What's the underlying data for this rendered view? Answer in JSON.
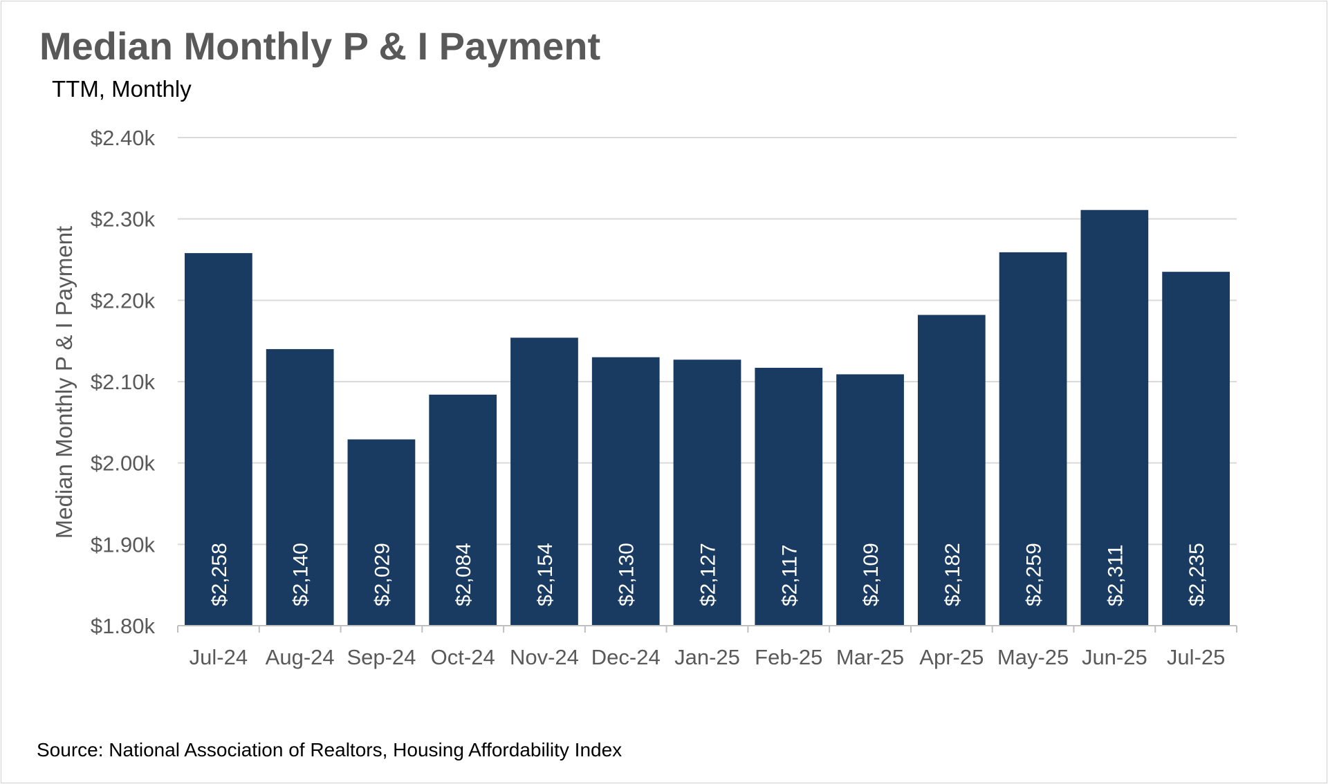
{
  "chart_data": {
    "type": "bar",
    "title": "Median Monthly P & I Payment",
    "subtitle": "TTM, Monthly",
    "source": "Source: National Association of Realtors, Housing Affordability Index",
    "ylabel": "Median Monthly P & I Payment",
    "xlabel": "",
    "categories": [
      "Jul-24",
      "Aug-24",
      "Sep-24",
      "Oct-24",
      "Nov-24",
      "Dec-24",
      "Jan-25",
      "Feb-25",
      "Mar-25",
      "Apr-25",
      "May-25",
      "Jun-25",
      "Jul-25"
    ],
    "values": [
      2258,
      2140,
      2029,
      2084,
      2154,
      2130,
      2127,
      2117,
      2109,
      2182,
      2259,
      2311,
      2235
    ],
    "data_labels": [
      "$2,258",
      "$2,140",
      "$2,029",
      "$2,084",
      "$2,154",
      "$2,130",
      "$2,127",
      "$2,117",
      "$2,109",
      "$2,182",
      "$2,259",
      "$2,311",
      "$2,235"
    ],
    "ylim": [
      1800,
      2400
    ],
    "yticks": [
      1800,
      1900,
      2000,
      2100,
      2200,
      2300,
      2400
    ],
    "ytick_labels": [
      "$1.80k",
      "$1.90k",
      "$2.00k",
      "$2.10k",
      "$2.20k",
      "$2.30k",
      "$2.40k"
    ],
    "grid": true,
    "legend": "none",
    "colors": {
      "bar": "#1a3b61",
      "grid": "#d9d9d9",
      "axis": "#bfbfbf",
      "text": "#595959",
      "data_label": "#ffffff"
    }
  }
}
